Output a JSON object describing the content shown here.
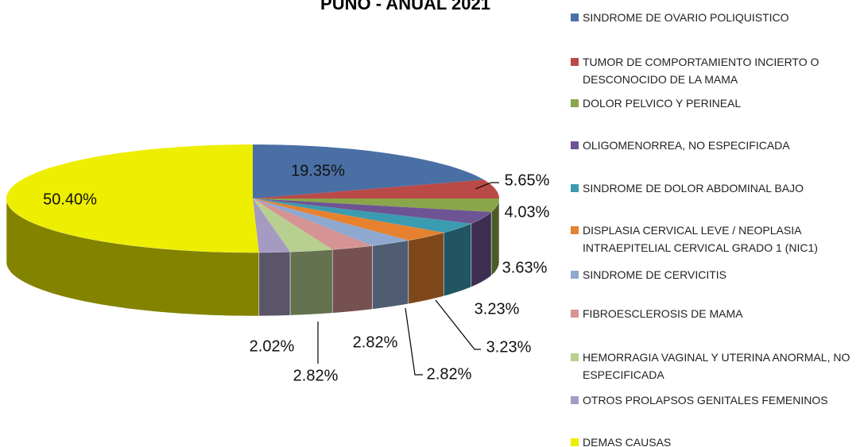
{
  "chart_data": {
    "type": "pie3d",
    "title": "PUNO - ANUAL 2021",
    "categories": [
      "SINDROME DE OVARIO POLIQUISTICO",
      "TUMOR DE COMPORTAMIENTO INCIERTO O DESCONOCIDO DE LA MAMA",
      "DOLOR PELVICO Y PERINEAL",
      "OLIGOMENORREA, NO ESPECIFICADA",
      "SINDROME DE DOLOR ABDOMINAL BAJO",
      "DISPLASIA CERVICAL LEVE / NEOPLASIA INTRAEPITELIAL CERVICAL GRADO  1 (NIC1)",
      "SINDROME DE CERVICITIS",
      "FIBROESCLEROSIS DE MAMA",
      "HEMORRAGIA VAGINAL Y UTERINA ANORMAL, NO ESPECIFICADA",
      "OTROS PROLAPSOS GENITALES FEMENINOS",
      "DEMAS CAUSAS"
    ],
    "values": [
      19.35,
      5.65,
      4.03,
      3.63,
      3.23,
      3.23,
      2.82,
      2.82,
      2.82,
      2.02,
      50.4
    ],
    "value_labels": [
      "19.35%",
      "5.65%",
      "4.03%",
      "3.63%",
      "3.23%",
      "3.23%",
      "2.82%",
      "2.82%",
      "2.82%",
      "2.02%",
      "50.40%"
    ],
    "colors": [
      "#4a6fa5",
      "#b94a48",
      "#8aa64a",
      "#6e5494",
      "#3b9bb0",
      "#e6822f",
      "#8fa8d0",
      "#d69393",
      "#b7cf8f",
      "#a59bc2",
      "#eeee00"
    ],
    "legend": "right"
  }
}
